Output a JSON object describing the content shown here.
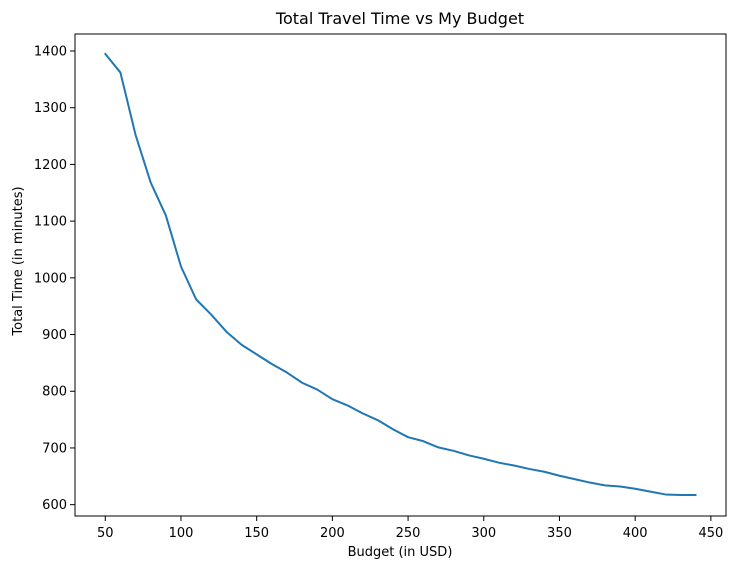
{
  "chart_data": {
    "type": "line",
    "title": "Total Travel Time vs My Budget",
    "xlabel": "Budget (in USD)",
    "ylabel": "Total Time (in minutes)",
    "xlim": [
      30,
      460
    ],
    "ylim": [
      580,
      1430
    ],
    "xticks": [
      50,
      100,
      150,
      200,
      250,
      300,
      350,
      400,
      450
    ],
    "yticks": [
      600,
      700,
      800,
      900,
      1000,
      1100,
      1200,
      1300,
      1400
    ],
    "grid": false,
    "line_color": "#1f77b4",
    "series": [
      {
        "x": [
          50,
          60,
          70,
          80,
          90,
          100,
          110,
          120,
          130,
          140,
          150,
          160,
          170,
          180,
          190,
          200,
          210,
          220,
          230,
          240,
          250,
          260,
          270,
          280,
          290,
          300,
          310,
          320,
          330,
          340,
          350,
          360,
          370,
          380,
          390,
          400,
          410,
          420,
          430,
          440
        ],
        "values": [
          1395,
          1362,
          1252,
          1168,
          1110,
          1020,
          962,
          935,
          905,
          882,
          865,
          848,
          833,
          815,
          803,
          786,
          775,
          761,
          749,
          733,
          719,
          712,
          701,
          695,
          687,
          681,
          674,
          669,
          663,
          658,
          651,
          645,
          639,
          634,
          632,
          628,
          623,
          618,
          617,
          617
        ]
      }
    ]
  }
}
